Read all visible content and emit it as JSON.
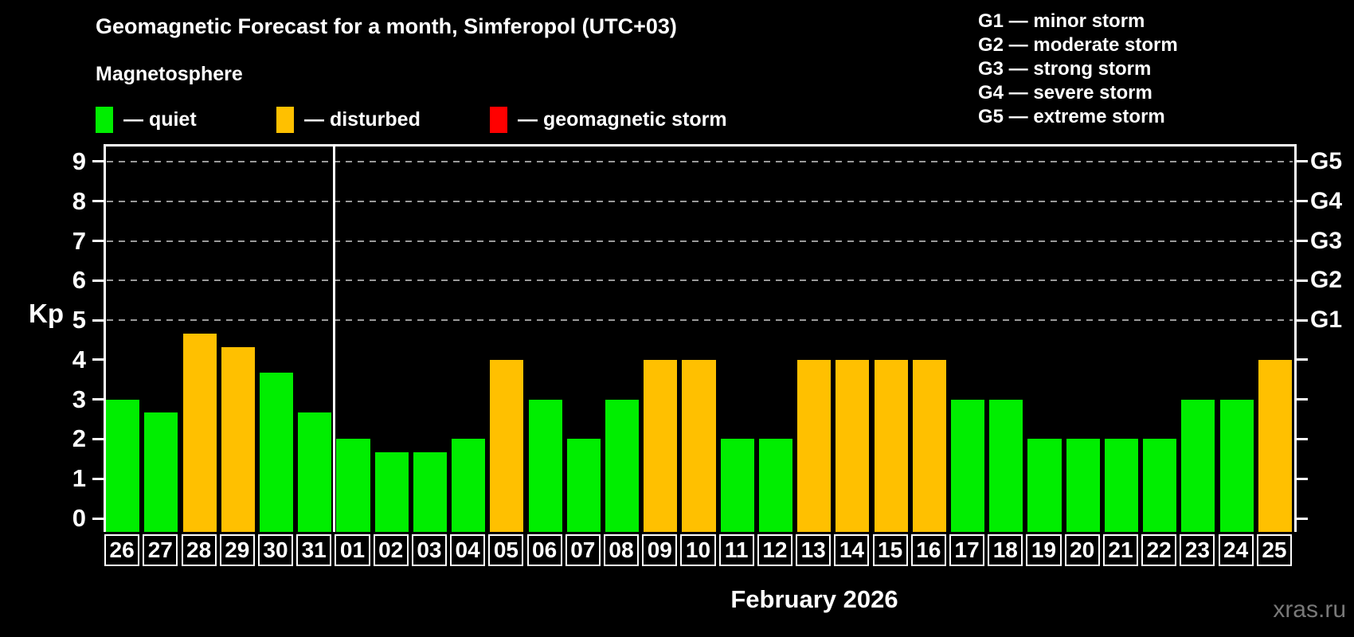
{
  "title": "Geomagnetic Forecast for a month, Simferopol (UTC+03)",
  "subtitle": "Magnetosphere",
  "watermark": "xras.ru",
  "colors": {
    "background": "#000000",
    "text": "#ffffff",
    "quiet": "#00ee00",
    "disturbed": "#ffc000",
    "storm": "#ff0000",
    "grid": "#9a9a9a",
    "axis": "#ffffff",
    "watermark": "#787878"
  },
  "legend": [
    {
      "key": "quiet",
      "label": "— quiet"
    },
    {
      "key": "disturbed",
      "label": "— disturbed"
    },
    {
      "key": "storm",
      "label": "— geomagnetic storm"
    }
  ],
  "g_legend": [
    "G1 — minor storm",
    "G2 — moderate storm",
    "G3 — strong storm",
    "G4 — severe storm",
    "G5 — extreme storm"
  ],
  "y_axis": {
    "label": "Kp",
    "ticks": [
      0,
      1,
      2,
      3,
      4,
      5,
      6,
      7,
      8,
      9
    ]
  },
  "right_axis": {
    "labels": [
      {
        "text": "G1",
        "kp": 5
      },
      {
        "text": "G2",
        "kp": 6
      },
      {
        "text": "G3",
        "kp": 7
      },
      {
        "text": "G4",
        "kp": 8
      },
      {
        "text": "G5",
        "kp": 9
      }
    ]
  },
  "x_axis_title": "February 2026",
  "chart_data": {
    "type": "bar",
    "title": "Geomagnetic Forecast for a month, Simferopol (UTC+03)",
    "xlabel": "February 2026",
    "ylabel": "Kp",
    "ylim": [
      0,
      9.4
    ],
    "grid": "horizontal dashed lines at Kp 5,6,7,8,9 (G1–G5 levels)",
    "legend_position": "top-left",
    "categories": [
      "26",
      "27",
      "28",
      "29",
      "30",
      "31",
      "01",
      "02",
      "03",
      "04",
      "05",
      "06",
      "07",
      "08",
      "09",
      "10",
      "11",
      "12",
      "13",
      "14",
      "15",
      "16",
      "17",
      "18",
      "19",
      "20",
      "21",
      "22",
      "23",
      "24",
      "25"
    ],
    "values": [
      3.0,
      2.67,
      4.67,
      4.33,
      3.67,
      2.67,
      2.0,
      1.67,
      1.67,
      2.0,
      4.0,
      3.0,
      2.0,
      3.0,
      4.0,
      4.0,
      2.0,
      2.0,
      4.0,
      4.0,
      4.0,
      4.0,
      3.0,
      3.0,
      2.0,
      2.0,
      2.0,
      2.0,
      3.0,
      3.0,
      4.0
    ],
    "statuses": [
      "quiet",
      "quiet",
      "disturbed",
      "disturbed",
      "quiet",
      "quiet",
      "quiet",
      "quiet",
      "quiet",
      "quiet",
      "disturbed",
      "quiet",
      "quiet",
      "quiet",
      "disturbed",
      "disturbed",
      "quiet",
      "quiet",
      "disturbed",
      "disturbed",
      "disturbed",
      "disturbed",
      "quiet",
      "quiet",
      "quiet",
      "quiet",
      "quiet",
      "quiet",
      "quiet",
      "quiet",
      "disturbed"
    ],
    "month_separator_after_category": "31",
    "prev_month_days": [
      "26",
      "27",
      "28",
      "29",
      "30",
      "31"
    ]
  }
}
